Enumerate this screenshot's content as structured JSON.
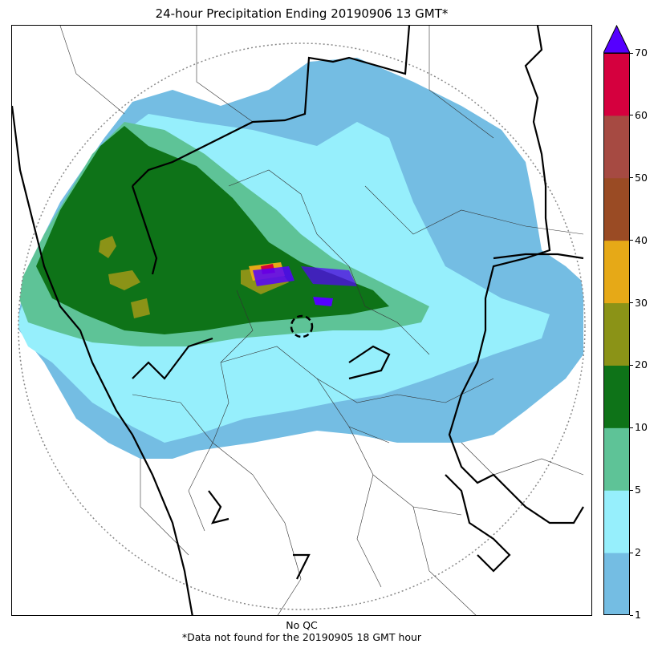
{
  "title": "24-hour Precipitation Ending 20190906 13 GMT*",
  "footer": {
    "qc": "No QC",
    "note": "*Data not found for the 20190905 18 GMT hour"
  },
  "colorbar": {
    "levels": [
      "1",
      "2",
      "5",
      "10",
      "20",
      "30",
      "40",
      "50",
      "60",
      "70"
    ],
    "colors": [
      "#74bde3",
      "#96effc",
      "#5ec397",
      "#0e7318",
      "#8b9317",
      "#e6a917",
      "#9a4b24",
      "#a64a42",
      "#d5003e"
    ],
    "extend_color": "#5500ff"
  }
}
